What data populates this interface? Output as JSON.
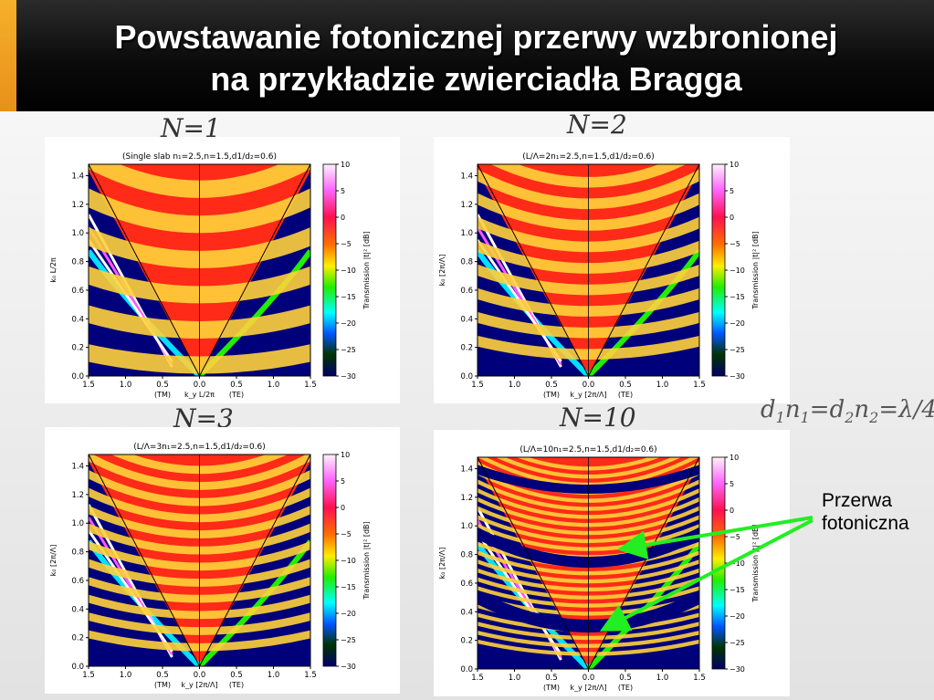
{
  "header": {
    "title_line1": "Powstawanie  fotonicznej przerwy wzbronionej",
    "title_line2": "na przykładzie zwierciadła Bragga"
  },
  "panels": [
    {
      "nlabel": "N=1",
      "plot_title": "(Single slab n₁=2.5,n=1.5,d1/d₂=0.6)",
      "ylabel": "k₀ L/2π",
      "xlabel": "k_y L/2π",
      "bands": 5.5
    },
    {
      "nlabel": "N=2",
      "plot_title": "(L/Λ=2n₁=2.5,n=1.5,d1/d₂=0.6)",
      "ylabel": "k₀ [2π/Λ]",
      "xlabel": "k_y [2π/Λ]",
      "bands": 9
    },
    {
      "nlabel": "N=3",
      "plot_title": "(L/Λ=3n₁=2.5,n=1.5,d1/d₂=0.6)",
      "ylabel": "k₀ [2π/Λ]",
      "xlabel": "k_y [2π/Λ]",
      "bands": 12
    },
    {
      "nlabel": "N=10",
      "plot_title": "(L/Λ=10n₁=2.5,n=1.5,d1/d₂=0.6)",
      "ylabel": "k₀ [2π/Λ]",
      "xlabel": "k_y [2π/Λ]",
      "bands": 24
    }
  ],
  "axes": {
    "x_ticks": [
      "1.5",
      "1.0",
      "0.5",
      "0.0",
      "0.5",
      "1.0",
      "1.5"
    ],
    "y_ticks": [
      "0.0",
      "0.2",
      "0.4",
      "0.6",
      "0.8",
      "1.0",
      "1.2",
      "1.4"
    ],
    "tm_label": "(TM)",
    "te_label": "(TE)",
    "colorbar_ticks": [
      "10",
      "5",
      "0",
      "−5",
      "−10",
      "−15",
      "−20",
      "−25",
      "−30"
    ],
    "colorbar_label": "Transmission |t|² [dB]"
  },
  "formula": {
    "d1": "d",
    "s1": "1",
    "n1": "n",
    "s2": "1",
    "eq": "=",
    "d2": "d",
    "s3": "2",
    "n2": "n",
    "s4": "2",
    "tail": "=λ/4"
  },
  "annotation": {
    "line1": "Przerwa",
    "line2": "fotoniczna"
  },
  "colors": {
    "title_text": "#ffffff",
    "accent": "#f0a020",
    "arrow": "#22ee22",
    "plot_background": "#00007a"
  }
}
